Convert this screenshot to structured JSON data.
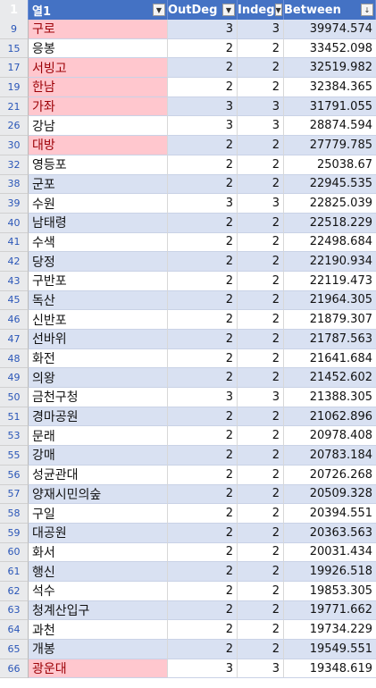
{
  "header": {
    "corner": "1",
    "col_name": "열1",
    "col_outdeg": "OutDeg",
    "col_indeg": "Indeg",
    "col_between": "Between",
    "filter_glyph": "▼",
    "sort_filter_glyph": "▼",
    "sort_desc_glyph": "↓"
  },
  "rows": [
    {
      "rn": "9",
      "name": "구로",
      "out": "3",
      "in": "3",
      "bt": "39974.574",
      "hl": true
    },
    {
      "rn": "15",
      "name": "응봉",
      "out": "2",
      "in": "2",
      "bt": "33452.098",
      "hl": false
    },
    {
      "rn": "17",
      "name": "서빙고",
      "out": "2",
      "in": "2",
      "bt": "32519.982",
      "hl": true
    },
    {
      "rn": "19",
      "name": "한남",
      "out": "2",
      "in": "2",
      "bt": "32384.365",
      "hl": true
    },
    {
      "rn": "21",
      "name": "가좌",
      "out": "3",
      "in": "3",
      "bt": "31791.055",
      "hl": true
    },
    {
      "rn": "26",
      "name": "강남",
      "out": "3",
      "in": "3",
      "bt": "28874.594",
      "hl": false
    },
    {
      "rn": "30",
      "name": "대방",
      "out": "2",
      "in": "2",
      "bt": "27779.785",
      "hl": true
    },
    {
      "rn": "32",
      "name": "영등포",
      "out": "2",
      "in": "2",
      "bt": "25038.67",
      "hl": false
    },
    {
      "rn": "38",
      "name": "군포",
      "out": "2",
      "in": "2",
      "bt": "22945.535",
      "hl": false
    },
    {
      "rn": "39",
      "name": "수원",
      "out": "3",
      "in": "3",
      "bt": "22825.039",
      "hl": false
    },
    {
      "rn": "40",
      "name": "남태령",
      "out": "2",
      "in": "2",
      "bt": "22518.229",
      "hl": false
    },
    {
      "rn": "41",
      "name": "수색",
      "out": "2",
      "in": "2",
      "bt": "22498.684",
      "hl": false
    },
    {
      "rn": "42",
      "name": "당정",
      "out": "2",
      "in": "2",
      "bt": "22190.934",
      "hl": false
    },
    {
      "rn": "43",
      "name": "구반포",
      "out": "2",
      "in": "2",
      "bt": "22119.473",
      "hl": false
    },
    {
      "rn": "45",
      "name": "독산",
      "out": "2",
      "in": "2",
      "bt": "21964.305",
      "hl": false
    },
    {
      "rn": "46",
      "name": "신반포",
      "out": "2",
      "in": "2",
      "bt": "21879.307",
      "hl": false
    },
    {
      "rn": "47",
      "name": "선바위",
      "out": "2",
      "in": "2",
      "bt": "21787.563",
      "hl": false
    },
    {
      "rn": "48",
      "name": "화전",
      "out": "2",
      "in": "2",
      "bt": "21641.684",
      "hl": false
    },
    {
      "rn": "49",
      "name": "의왕",
      "out": "2",
      "in": "2",
      "bt": "21452.602",
      "hl": false
    },
    {
      "rn": "50",
      "name": "금천구청",
      "out": "3",
      "in": "3",
      "bt": "21388.305",
      "hl": false
    },
    {
      "rn": "51",
      "name": "경마공원",
      "out": "2",
      "in": "2",
      "bt": "21062.896",
      "hl": false
    },
    {
      "rn": "53",
      "name": "문래",
      "out": "2",
      "in": "2",
      "bt": "20978.408",
      "hl": false
    },
    {
      "rn": "55",
      "name": "강매",
      "out": "2",
      "in": "2",
      "bt": "20783.184",
      "hl": false
    },
    {
      "rn": "56",
      "name": "성균관대",
      "out": "2",
      "in": "2",
      "bt": "20726.268",
      "hl": false
    },
    {
      "rn": "57",
      "name": "양재시민의숲",
      "out": "2",
      "in": "2",
      "bt": "20509.328",
      "hl": false
    },
    {
      "rn": "58",
      "name": "구일",
      "out": "2",
      "in": "2",
      "bt": "20394.551",
      "hl": false
    },
    {
      "rn": "59",
      "name": "대공원",
      "out": "2",
      "in": "2",
      "bt": "20363.563",
      "hl": false
    },
    {
      "rn": "60",
      "name": "화서",
      "out": "2",
      "in": "2",
      "bt": "20031.434",
      "hl": false
    },
    {
      "rn": "61",
      "name": "행신",
      "out": "2",
      "in": "2",
      "bt": "19926.518",
      "hl": false
    },
    {
      "rn": "62",
      "name": "석수",
      "out": "2",
      "in": "2",
      "bt": "19853.305",
      "hl": false
    },
    {
      "rn": "63",
      "name": "청계산입구",
      "out": "2",
      "in": "2",
      "bt": "19771.662",
      "hl": false
    },
    {
      "rn": "64",
      "name": "과천",
      "out": "2",
      "in": "2",
      "bt": "19734.229",
      "hl": false
    },
    {
      "rn": "65",
      "name": "개봉",
      "out": "2",
      "in": "2",
      "bt": "19549.551",
      "hl": false
    },
    {
      "rn": "66",
      "name": "광운대",
      "out": "3",
      "in": "3",
      "bt": "19348.619",
      "hl": true
    }
  ],
  "colors": {
    "header": "#4472c4",
    "band": "#d9e1f2",
    "highlight_fill": "#ffc7ce",
    "highlight_text": "#9c0006"
  }
}
